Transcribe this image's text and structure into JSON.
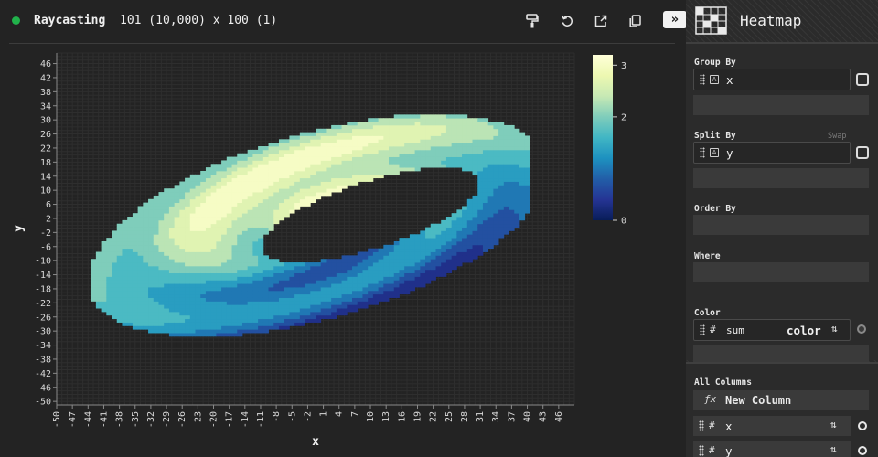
{
  "header": {
    "title": "Raycasting",
    "dims": "101 (10,000) x 100 (1)",
    "status_color": "#21b24b",
    "toolbar_icons": [
      "paint-roller-icon",
      "reset-icon",
      "export-icon",
      "copy-icon"
    ],
    "collapse_label": "»"
  },
  "sidebar": {
    "plugin_name": "Heatmap",
    "plugin_icon": "heatmap-icon",
    "group_by": {
      "label": "Group By",
      "column": "x",
      "type_badge": "A"
    },
    "split_by": {
      "label": "Split By",
      "column": "y",
      "type_badge": "A",
      "swap_label": "Swap"
    },
    "order_by": {
      "label": "Order By"
    },
    "where": {
      "label": "Where"
    },
    "color": {
      "label": "Color",
      "agg": "sum",
      "column": "color",
      "type_badge": "#"
    },
    "all_columns": {
      "label": "All Columns",
      "new_column_label": "New Column",
      "new_column_icon": "function-icon",
      "columns": [
        {
          "type_badge": "#",
          "name": "x"
        },
        {
          "type_badge": "#",
          "name": "y"
        }
      ]
    }
  },
  "chart_data": {
    "type": "heatmap",
    "xlabel": "x",
    "ylabel": "y",
    "x_ticks": [
      -50,
      -47,
      -44,
      -41,
      -38,
      -35,
      -32,
      -29,
      -26,
      -23,
      -20,
      -17,
      -14,
      -11,
      -8,
      -5,
      -2,
      1,
      4,
      7,
      10,
      13,
      16,
      19,
      22,
      25,
      28,
      31,
      34,
      37,
      40,
      43,
      46
    ],
    "y_ticks": [
      46,
      42,
      38,
      34,
      30,
      26,
      22,
      18,
      14,
      10,
      6,
      2,
      -2,
      -6,
      -10,
      -14,
      -18,
      -22,
      -26,
      -30,
      -34,
      -38,
      -42,
      -46,
      -50
    ],
    "xlim": [
      -50,
      49
    ],
    "ylim": [
      -51,
      49
    ],
    "grid": true,
    "colorbar": {
      "ticks": [
        3,
        2,
        0
      ],
      "range": [
        0,
        3.2
      ],
      "colors": [
        "#081d58",
        "#253494",
        "#225ea8",
        "#1d91c0",
        "#41b6c4",
        "#7fcdbb",
        "#c7e9b4",
        "#edf8b1",
        "#ffffd9"
      ]
    },
    "shape": "torus",
    "outer_ellipse": {
      "cx": 0,
      "cy": 0,
      "rx": 48,
      "ry": 25,
      "angle_deg": 28
    },
    "hole_ellipse": {
      "cx": 10,
      "cy": 3,
      "rx": 23,
      "ry": 9,
      "angle_deg": 28
    },
    "value_range": [
      0.3,
      3.1
    ]
  }
}
